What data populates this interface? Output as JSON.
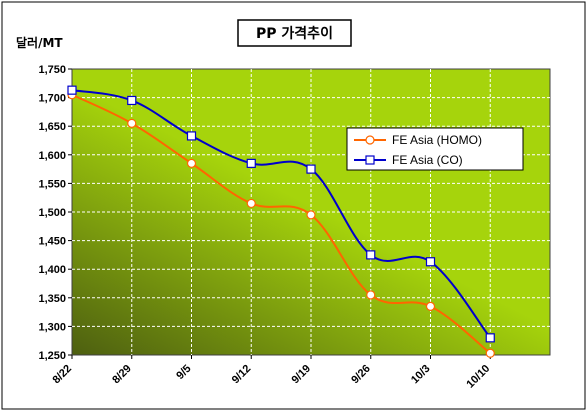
{
  "chart_data": {
    "type": "line",
    "title": "PP 가격추이",
    "ylabel": "달러/MT",
    "xlabel": "",
    "categories": [
      "8/22",
      "8/29",
      "9/5",
      "9/12",
      "9/19",
      "9/26",
      "10/3",
      "10/10"
    ],
    "yticks": [
      "1,250",
      "1,300",
      "1,350",
      "1,400",
      "1,450",
      "1,500",
      "1,550",
      "1,600",
      "1,650",
      "1,700",
      "1,750"
    ],
    "ylim": [
      1250,
      1750
    ],
    "grid": true,
    "legend_position": "right",
    "series": [
      {
        "name": "FE Asia (HOMO)",
        "color": "#ff6600",
        "marker": "circle",
        "values": [
          1705,
          1655,
          1585,
          1515,
          1495,
          1355,
          1335,
          1253
        ]
      },
      {
        "name": "FE Asia (CO)",
        "color": "#0000cc",
        "marker": "square",
        "values": [
          1713,
          1695,
          1633,
          1585,
          1575,
          1425,
          1413,
          1280
        ]
      }
    ],
    "colors": {
      "plot_dark": "#4d5f10",
      "plot_light": "#a6d40c",
      "grid": "#ffffff"
    }
  }
}
